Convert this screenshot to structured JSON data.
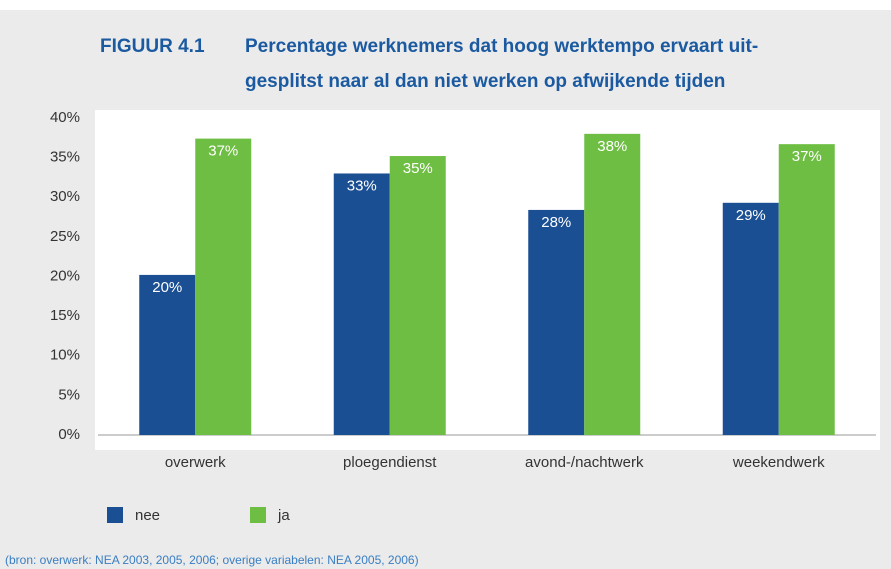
{
  "chart_data": {
    "type": "bar",
    "figure_label": "FIGUUR 4.1",
    "title": [
      "Percentage werknemers dat hoog werktempo ervaart uit-",
      "gesplitst naar al dan niet werken op afwijkende tijden"
    ],
    "categories": [
      "overwerk",
      "ploegendienst",
      "avond-/nachtwerk",
      "weekendwerk"
    ],
    "series": [
      {
        "name": "nee",
        "color": "#1b4f93",
        "values": [
          20.2,
          33.0,
          28.4,
          29.3
        ],
        "value_labels": [
          "20%",
          "33%",
          "28%",
          "29%"
        ]
      },
      {
        "name": "ja",
        "color": "#6fbe44",
        "values": [
          37.4,
          35.2,
          38.0,
          36.7
        ],
        "value_labels": [
          "37%",
          "35%",
          "38%",
          "37%"
        ]
      }
    ],
    "ylim": [
      0,
      40
    ],
    "yticks": [
      {
        "value": 0,
        "label": "0%"
      },
      {
        "value": 5,
        "label": "5%"
      },
      {
        "value": 10,
        "label": "10%"
      },
      {
        "value": 15,
        "label": "15%"
      },
      {
        "value": 20,
        "label": "20%"
      },
      {
        "value": 25,
        "label": "25%"
      },
      {
        "value": 30,
        "label": "30%"
      },
      {
        "value": 35,
        "label": "35%"
      },
      {
        "value": 40,
        "label": "40%"
      }
    ],
    "grid": false,
    "source": "(bron: overwerk: NEA 2003, 2005, 2006; overige variabelen: NEA 2005, 2006)"
  }
}
